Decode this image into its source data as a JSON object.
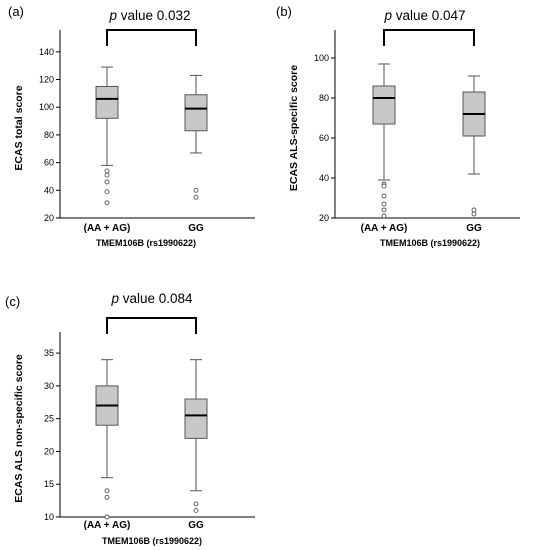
{
  "chart_data": [
    {
      "type": "box",
      "panel_label": "(a)",
      "significance": {
        "p_italic": "p",
        "text": "value 0.032"
      },
      "ylabel": "ECAS total score",
      "xlabel": "TMEM106B (rs1990622)",
      "ylim": [
        20,
        150
      ],
      "yticks": [
        20,
        40,
        60,
        80,
        100,
        120,
        140
      ],
      "categories": [
        "(AA + AG)",
        "GG"
      ],
      "boxes": [
        {
          "whisker_low": 58,
          "q1": 92,
          "median": 106,
          "q3": 115,
          "whisker_high": 129,
          "outliers": [
            54,
            51,
            46,
            39,
            31
          ]
        },
        {
          "whisker_low": 67,
          "q1": 83,
          "median": 99,
          "q3": 109,
          "whisker_high": 123,
          "outliers": [
            40,
            35
          ]
        }
      ]
    },
    {
      "type": "box",
      "panel_label": "(b)",
      "significance": {
        "p_italic": "p",
        "text": "value 0.047"
      },
      "ylabel": "ECAS ALS-specific score",
      "xlabel": "TMEM106B (rs1990622)",
      "ylim": [
        20,
        110
      ],
      "yticks": [
        20,
        40,
        60,
        80,
        100
      ],
      "categories": [
        "(AA + AG)",
        "GG"
      ],
      "boxes": [
        {
          "whisker_low": 39,
          "q1": 67,
          "median": 80,
          "q3": 86,
          "whisker_high": 97,
          "outliers": [
            37,
            36,
            31,
            27,
            24,
            21
          ]
        },
        {
          "whisker_low": 42,
          "q1": 61,
          "median": 72,
          "q3": 83,
          "whisker_high": 91,
          "outliers": [
            24,
            22
          ]
        }
      ]
    },
    {
      "type": "box",
      "panel_label": "(c)",
      "significance": {
        "p_italic": "p",
        "text": "value 0.084"
      },
      "ylabel": "ECAS ALS non-specific score",
      "xlabel": "TMEM106B (rs1990622)",
      "ylim": [
        10,
        37
      ],
      "yticks": [
        10,
        15,
        20,
        25,
        30,
        35
      ],
      "categories": [
        "(AA + AG)",
        "GG"
      ],
      "boxes": [
        {
          "whisker_low": 16,
          "q1": 24,
          "median": 27,
          "q3": 30,
          "whisker_high": 34,
          "outliers": [
            14,
            13,
            10
          ]
        },
        {
          "whisker_low": 14,
          "q1": 22,
          "median": 25.5,
          "q3": 28,
          "whisker_high": 34,
          "outliers": [
            12,
            11
          ]
        }
      ]
    }
  ],
  "colors": {
    "box_fill": "#c8c8c8",
    "stroke": "#555555",
    "axis": "#000000",
    "bracket": "#000000"
  }
}
